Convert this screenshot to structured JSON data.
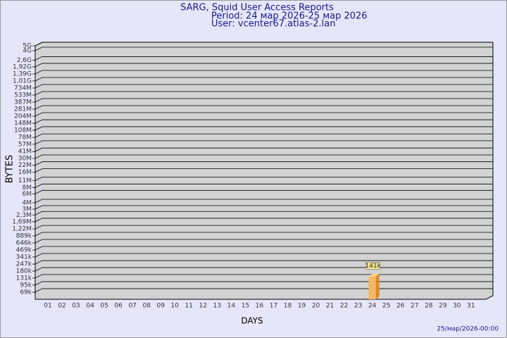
{
  "chart_data": {
    "type": "bar",
    "title": "SARG, Squid User Access Reports",
    "subtitle": "Period: 24 мар 2026-25 мар 2026",
    "user": "User: vcenter67.atlas-2.lan",
    "y_label": "BYTES",
    "x_label": "DAYS",
    "footer": "25/мар/2026-00:00",
    "log": true,
    "grid": true,
    "color": "#f7b864",
    "categories": [
      "01",
      "02",
      "03",
      "04",
      "05",
      "06",
      "07",
      "08",
      "09",
      "10",
      "11",
      "12",
      "13",
      "14",
      "15",
      "16",
      "17",
      "18",
      "19",
      "20",
      "21",
      "22",
      "23",
      "24",
      "25",
      "26",
      "27",
      "28",
      "29",
      "30",
      "31"
    ],
    "values": [
      null,
      null,
      null,
      null,
      null,
      null,
      null,
      null,
      null,
      null,
      null,
      null,
      null,
      null,
      null,
      null,
      null,
      null,
      null,
      null,
      null,
      null,
      null,
      141000,
      null,
      null,
      null,
      null,
      null,
      null,
      null
    ],
    "value_labels": [
      null,
      null,
      null,
      null,
      null,
      null,
      null,
      null,
      null,
      null,
      null,
      null,
      null,
      null,
      null,
      null,
      null,
      null,
      null,
      null,
      null,
      null,
      null,
      "141k",
      null,
      null,
      null,
      null,
      null,
      null,
      null
    ],
    "ylim": [
      50000,
      5000000000
    ],
    "yticks": [
      {
        "value": 69000,
        "label": "69k"
      },
      {
        "value": 95000,
        "label": "95k"
      },
      {
        "value": 131000,
        "label": "131k"
      },
      {
        "value": 180000,
        "label": "180k"
      },
      {
        "value": 247000,
        "label": "247k"
      },
      {
        "value": 341000,
        "label": "341k"
      },
      {
        "value": 469000,
        "label": "469k"
      },
      {
        "value": 646000,
        "label": "646k"
      },
      {
        "value": 889000,
        "label": "889k"
      },
      {
        "value": 1220000,
        "label": "1,22M"
      },
      {
        "value": 1690000,
        "label": "1,69M"
      },
      {
        "value": 2300000,
        "label": "2,3M"
      },
      {
        "value": 3000000,
        "label": "3M"
      },
      {
        "value": 4000000,
        "label": "4M"
      },
      {
        "value": 6000000,
        "label": "6M"
      },
      {
        "value": 8000000,
        "label": "8M"
      },
      {
        "value": 11000000,
        "label": "11M"
      },
      {
        "value": 16000000,
        "label": "16M"
      },
      {
        "value": 22000000,
        "label": "22M"
      },
      {
        "value": 30000000,
        "label": "30M"
      },
      {
        "value": 41000000,
        "label": "41M"
      },
      {
        "value": 57000000,
        "label": "57M"
      },
      {
        "value": 78000000,
        "label": "78M"
      },
      {
        "value": 108000000,
        "label": "108M"
      },
      {
        "value": 148000000,
        "label": "148M"
      },
      {
        "value": 204000000,
        "label": "204M"
      },
      {
        "value": 281000000,
        "label": "281M"
      },
      {
        "value": 387000000,
        "label": "387M"
      },
      {
        "value": 533000000,
        "label": "533M"
      },
      {
        "value": 734000000,
        "label": "734M"
      },
      {
        "value": 1010000000,
        "label": "1,01G"
      },
      {
        "value": 1390000000,
        "label": "1,39G"
      },
      {
        "value": 1920000000,
        "label": "1,92G"
      },
      {
        "value": 2600000000,
        "label": "2,6G"
      },
      {
        "value": 4000000000,
        "label": "4G"
      },
      {
        "value": 5000000000,
        "label": "5G"
      }
    ]
  }
}
